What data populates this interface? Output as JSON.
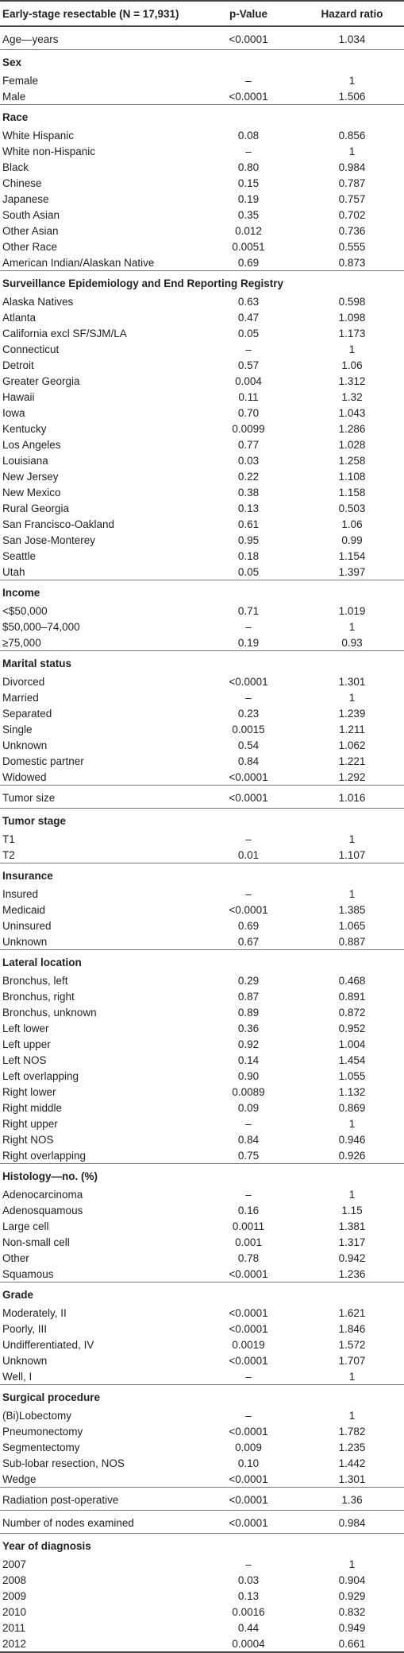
{
  "table": {
    "header": [
      "Early-stage resectable (N = 17,931)",
      "p-Value",
      "Hazard ratio"
    ],
    "sections": [
      {
        "rows": [
          [
            "Age—years",
            "<0.0001",
            "1.034"
          ]
        ]
      },
      {
        "title": "Sex",
        "rows": [
          [
            "Female",
            "–",
            "1"
          ],
          [
            "Male",
            "<0.0001",
            "1.506"
          ]
        ]
      },
      {
        "title": "Race",
        "rows": [
          [
            "White Hispanic",
            "0.08",
            "0.856"
          ],
          [
            "White non-Hispanic",
            "–",
            "1"
          ],
          [
            "Black",
            "0.80",
            "0.984"
          ],
          [
            "Chinese",
            "0.15",
            "0.787"
          ],
          [
            "Japanese",
            "0.19",
            "0.757"
          ],
          [
            "South Asian",
            "0.35",
            "0.702"
          ],
          [
            "Other Asian",
            "0.012",
            "0.736"
          ],
          [
            "Other Race",
            "0.0051",
            "0.555"
          ],
          [
            "American Indian/Alaskan Native",
            "0.69",
            "0.873"
          ]
        ]
      },
      {
        "title": "Surveillance Epidemiology and End Reporting Registry",
        "rows": [
          [
            "Alaska Natives",
            "0.63",
            "0.598"
          ],
          [
            "Atlanta",
            "0.47",
            "1.098"
          ],
          [
            "California excl SF/SJM/LA",
            "0.05",
            "1.173"
          ],
          [
            "Connecticut",
            "–",
            "1"
          ],
          [
            "Detroit",
            "0.57",
            "1.06"
          ],
          [
            "Greater Georgia",
            "0.004",
            "1.312"
          ],
          [
            "Hawaii",
            "0.11",
            "1.32"
          ],
          [
            "Iowa",
            "0.70",
            "1.043"
          ],
          [
            "Kentucky",
            "0.0099",
            "1.286"
          ],
          [
            "Los Angeles",
            "0.77",
            "1.028"
          ],
          [
            "Louisiana",
            "0.03",
            "1.258"
          ],
          [
            "New Jersey",
            "0.22",
            "1.108"
          ],
          [
            "New Mexico",
            "0.38",
            "1.158"
          ],
          [
            "Rural Georgia",
            "0.13",
            "0.503"
          ],
          [
            "San Francisco-Oakland",
            "0.61",
            "1.06"
          ],
          [
            "San Jose-Monterey",
            "0.95",
            "0.99"
          ],
          [
            "Seattle",
            "0.18",
            "1.154"
          ],
          [
            "Utah",
            "0.05",
            "1.397"
          ]
        ]
      },
      {
        "title": "Income",
        "rows": [
          [
            "<$50,000",
            "0.71",
            "1.019"
          ],
          [
            "$50,000–74,000",
            "–",
            "1"
          ],
          [
            "≥75,000",
            "0.19",
            "0.93"
          ]
        ]
      },
      {
        "title": "Marital status",
        "rows": [
          [
            "Divorced",
            "<0.0001",
            "1.301"
          ],
          [
            "Married",
            "–",
            "1"
          ],
          [
            "Separated",
            "0.23",
            "1.239"
          ],
          [
            "Single",
            "0.0015",
            "1.211"
          ],
          [
            "Unknown",
            "0.54",
            "1.062"
          ],
          [
            "Domestic partner",
            "0.84",
            "1.221"
          ],
          [
            "Widowed",
            "<0.0001",
            "1.292"
          ]
        ]
      },
      {
        "rows": [
          [
            "Tumor size",
            "<0.0001",
            "1.016"
          ]
        ]
      },
      {
        "title": "Tumor stage",
        "rows": [
          [
            "T1",
            "–",
            "1"
          ],
          [
            "T2",
            "0.01",
            "1.107"
          ]
        ]
      },
      {
        "title": "Insurance",
        "rows": [
          [
            "Insured",
            "–",
            "1"
          ],
          [
            "Medicaid",
            "<0.0001",
            "1.385"
          ],
          [
            "Uninsured",
            "0.69",
            "1.065"
          ],
          [
            "Unknown",
            "0.67",
            "0.887"
          ]
        ]
      },
      {
        "title": "Lateral location",
        "rows": [
          [
            "Bronchus, left",
            "0.29",
            "0.468"
          ],
          [
            "Bronchus, right",
            "0.87",
            "0.891"
          ],
          [
            "Bronchus, unknown",
            "0.89",
            "0.872"
          ],
          [
            "Left lower",
            "0.36",
            "0.952"
          ],
          [
            "Left upper",
            "0.92",
            "1.004"
          ],
          [
            "Left NOS",
            "0.14",
            "1.454"
          ],
          [
            "Left overlapping",
            "0.90",
            "1.055"
          ],
          [
            "Right lower",
            "0.0089",
            "1.132"
          ],
          [
            "Right middle",
            "0.09",
            "0.869"
          ],
          [
            "Right upper",
            "–",
            "1"
          ],
          [
            "Right NOS",
            "0.84",
            "0.946"
          ],
          [
            "Right overlapping",
            "0.75",
            "0.926"
          ]
        ]
      },
      {
        "title": "Histology—no. (%)",
        "rows": [
          [
            "Adenocarcinoma",
            "–",
            "1"
          ],
          [
            "Adenosquamous",
            "0.16",
            "1.15"
          ],
          [
            "Large cell",
            "0.0011",
            "1.381"
          ],
          [
            "Non-small cell",
            "0.001",
            "1.317"
          ],
          [
            "Other",
            "0.78",
            "0.942"
          ],
          [
            "Squamous",
            "<0.0001",
            "1.236"
          ]
        ]
      },
      {
        "title": "Grade",
        "rows": [
          [
            "Moderately, II",
            "<0.0001",
            "1.621"
          ],
          [
            "Poorly, III",
            "<0.0001",
            "1.846"
          ],
          [
            "Undifferentiated, IV",
            "0.0019",
            "1.572"
          ],
          [
            "Unknown",
            "<0.0001",
            "1.707"
          ],
          [
            "Well, I",
            "–",
            "1"
          ]
        ]
      },
      {
        "title": "Surgical procedure",
        "rows": [
          [
            "(Bi)Lobectomy",
            "–",
            "1"
          ],
          [
            "Pneumonectomy",
            "<0.0001",
            "1.782"
          ],
          [
            "Segmentectomy",
            "0.009",
            "1.235"
          ],
          [
            "Sub-lobar resection, NOS",
            "0.10",
            "1.442"
          ],
          [
            "Wedge",
            "<0.0001",
            "1.301"
          ]
        ]
      },
      {
        "rows": [
          [
            "Radiation post-operative",
            "<0.0001",
            "1.36"
          ]
        ]
      },
      {
        "rows": [
          [
            "Number of nodes examined",
            "<0.0001",
            "0.984"
          ]
        ]
      },
      {
        "title": "Year of diagnosis",
        "rows": [
          [
            "2007",
            "–",
            "1"
          ],
          [
            "2008",
            "0.03",
            "0.904"
          ],
          [
            "2009",
            "0.13",
            "0.929"
          ],
          [
            "2010",
            "0.0016",
            "0.832"
          ],
          [
            "2011",
            "0.44",
            "0.949"
          ],
          [
            "2012",
            "0.0004",
            "0.661"
          ]
        ]
      }
    ]
  }
}
